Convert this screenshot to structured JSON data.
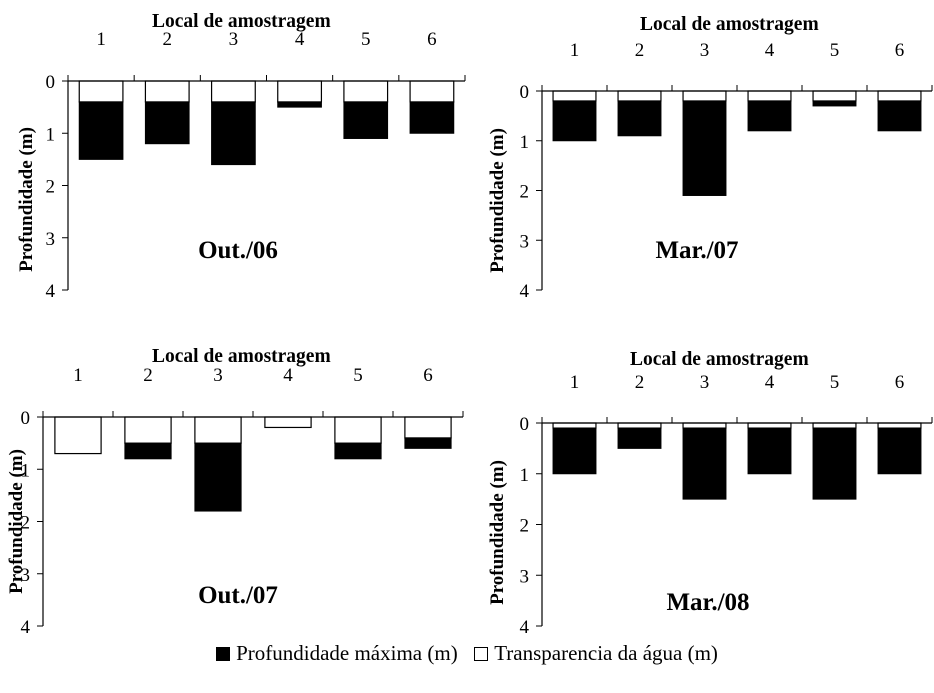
{
  "colors": {
    "max_depth": "#000000",
    "transparency": "#ffffff",
    "axis": "#000000"
  },
  "legend": {
    "max_depth_label": "Profundidade máxima (m)",
    "transparency_label": "Transparencia da água (m)"
  },
  "chart_data": [
    {
      "type": "bar",
      "panel_label": "Out./06",
      "xlabel": "Local de amostragem",
      "ylabel": "Profundidade (m)",
      "categories": [
        "1",
        "2",
        "3",
        "4",
        "5",
        "6"
      ],
      "ylim": [
        0,
        4
      ],
      "yticks": [
        "0",
        "1",
        "2",
        "3",
        "4"
      ],
      "y_inverted": true,
      "x_axis_position": "top",
      "series": [
        {
          "name": "Profundidade máxima (m)",
          "values": [
            1.5,
            1.2,
            1.6,
            0.5,
            1.1,
            1.0
          ]
        },
        {
          "name": "Transparencia da água (m)",
          "values": [
            0.4,
            0.4,
            0.4,
            0.4,
            0.4,
            0.4
          ]
        }
      ]
    },
    {
      "type": "bar",
      "panel_label": "Mar./07",
      "xlabel": "Local de amostragem",
      "ylabel": "Profundidade (m)",
      "categories": [
        "1",
        "2",
        "3",
        "4",
        "5",
        "6"
      ],
      "ylim": [
        0,
        4
      ],
      "yticks": [
        "0",
        "1",
        "2",
        "3",
        "4"
      ],
      "y_inverted": true,
      "x_axis_position": "top",
      "series": [
        {
          "name": "Profundidade máxima (m)",
          "values": [
            1.0,
            0.9,
            2.1,
            0.8,
            0.3,
            0.8
          ]
        },
        {
          "name": "Transparencia da água (m)",
          "values": [
            0.2,
            0.2,
            0.2,
            0.2,
            0.2,
            0.2
          ]
        }
      ]
    },
    {
      "type": "bar",
      "panel_label": "Out./07",
      "xlabel": "Local de amostragem",
      "ylabel": "Profundidade (m)",
      "categories": [
        "1",
        "2",
        "3",
        "4",
        "5",
        "6"
      ],
      "ylim": [
        0,
        4
      ],
      "yticks": [
        "0",
        "1",
        "2",
        "3",
        "4"
      ],
      "y_inverted": true,
      "x_axis_position": "top",
      "series": [
        {
          "name": "Profundidade máxima (m)",
          "values": [
            0.7,
            0.8,
            1.8,
            0.2,
            0.8,
            0.6
          ]
        },
        {
          "name": "Transparencia da água (m)",
          "values": [
            0.7,
            0.5,
            0.5,
            0.2,
            0.5,
            0.4
          ]
        }
      ]
    },
    {
      "type": "bar",
      "panel_label": "Mar./08",
      "xlabel": "Local de amostragem",
      "ylabel": "Profundidade (m)",
      "categories": [
        "1",
        "2",
        "3",
        "4",
        "5",
        "6"
      ],
      "ylim": [
        0,
        4
      ],
      "yticks": [
        "0",
        "1",
        "2",
        "3",
        "4"
      ],
      "y_inverted": true,
      "x_axis_position": "top",
      "series": [
        {
          "name": "Profundidade máxima (m)",
          "values": [
            1.0,
            0.5,
            1.5,
            1.0,
            1.5,
            1.0
          ]
        },
        {
          "name": "Transparencia da água (m)",
          "values": [
            0.1,
            0.1,
            0.1,
            0.1,
            0.1,
            0.1
          ]
        }
      ]
    }
  ]
}
